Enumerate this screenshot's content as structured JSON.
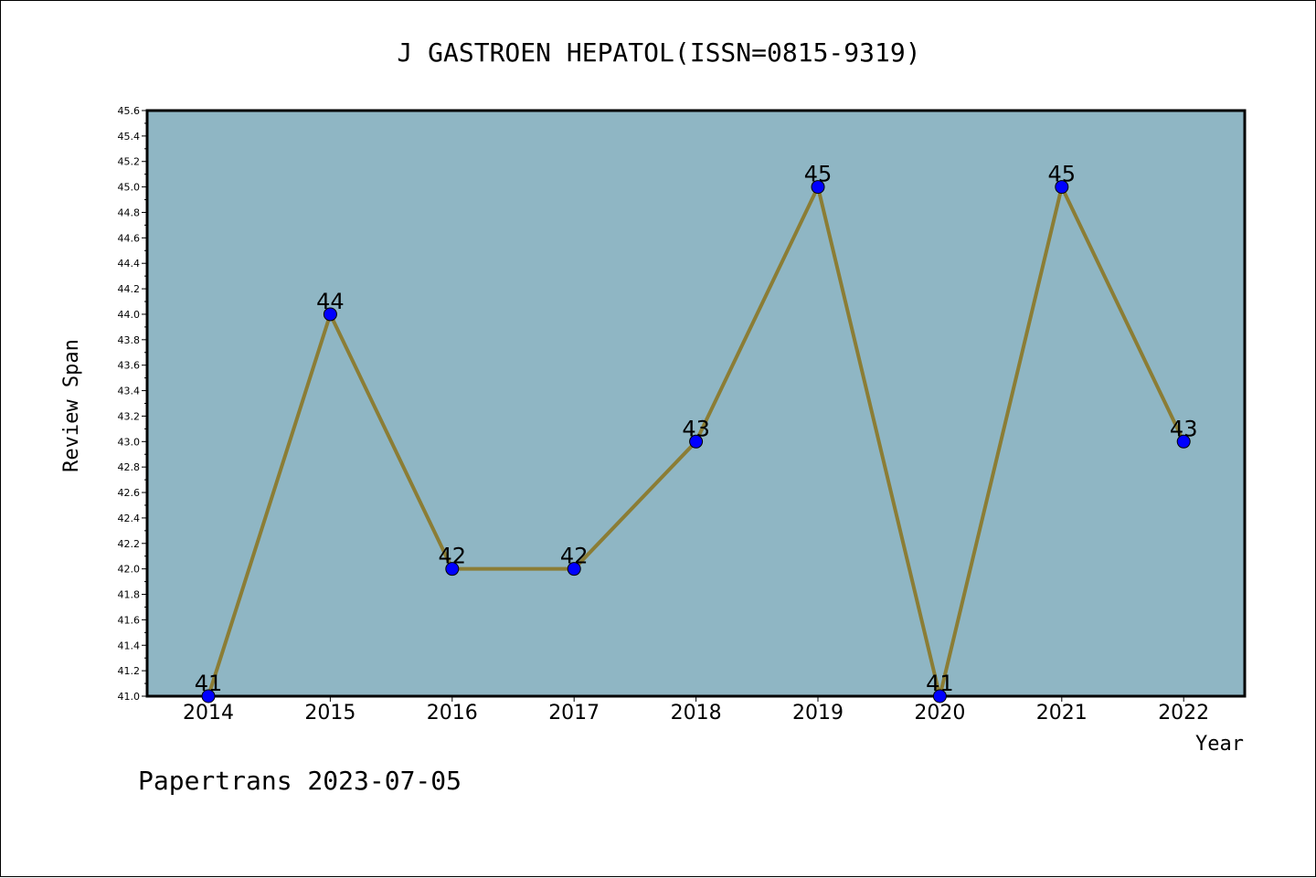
{
  "chart_data": {
    "type": "line",
    "title": "J GASTROEN HEPATOL(ISSN=0815-9319)",
    "xlabel": "Year",
    "ylabel": "Review Span",
    "categories": [
      "2014",
      "2015",
      "2016",
      "2017",
      "2018",
      "2019",
      "2020",
      "2021",
      "2022"
    ],
    "series": [
      {
        "values": [
          41,
          44,
          42,
          42,
          43,
          45,
          41,
          45,
          43
        ]
      }
    ],
    "data_labels": [
      "41",
      "44",
      "42",
      "42",
      "43",
      "45",
      "41",
      "45",
      "43"
    ],
    "ylim": [
      41.0,
      45.6
    ],
    "yticks": [
      "41.0",
      "41.2",
      "41.4",
      "41.6",
      "41.8",
      "42.0",
      "42.2",
      "42.4",
      "42.6",
      "42.8",
      "43.0",
      "43.2",
      "43.4",
      "43.6",
      "43.8",
      "44.0",
      "44.2",
      "44.4",
      "44.6",
      "44.8",
      "45.0",
      "45.2",
      "45.4",
      "45.6"
    ],
    "grid": false,
    "colors": {
      "plot_background": "#8fb6c4",
      "line": "#8b7d35",
      "marker": "#0000ff"
    }
  },
  "footer": "Papertrans 2023-07-05"
}
